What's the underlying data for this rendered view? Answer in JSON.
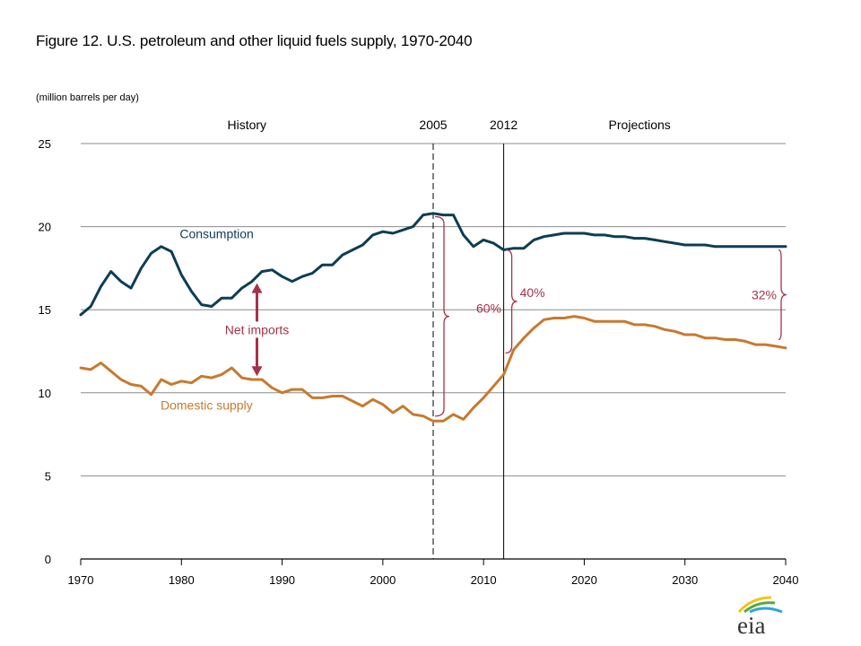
{
  "title": "Figure 12. U.S. petroleum and other liquid fuels supply, 1970-2040",
  "units": "(million barrels per day)",
  "logo_text": "eia",
  "colors": {
    "consumption": "#0d3d55",
    "domestic": "#c77a2e",
    "annotation": "#a63248",
    "grid": "#8c8c8c",
    "axis": "#000000"
  },
  "chart_data": {
    "type": "line",
    "title": "Figure 12. U.S. petroleum and other liquid fuels supply, 1970-2040",
    "ylabel": "(million barrels per day)",
    "xlabel": "",
    "xlim": [
      1970,
      2040
    ],
    "ylim": [
      0,
      25
    ],
    "grid": true,
    "x_ticks": [
      1970,
      1980,
      1990,
      2000,
      2010,
      2020,
      2030,
      2040
    ],
    "x_tick_labels": [
      "1970",
      "1980",
      "1990",
      "2000",
      "2010",
      "2020",
      "2030",
      "2040"
    ],
    "y_ticks": [
      0,
      5,
      10,
      15,
      20,
      25
    ],
    "y_tick_labels": [
      "0",
      "5",
      "10",
      "15",
      "20",
      "25"
    ],
    "period_markers": [
      {
        "year": 2005,
        "label": "2005",
        "style": "dashed"
      },
      {
        "year": 2012,
        "label": "2012",
        "style": "solid"
      }
    ],
    "period_labels": [
      {
        "label": "History",
        "year": 1986.5
      },
      {
        "label": "Projections",
        "year": 2025.5
      }
    ],
    "series": [
      {
        "name": "Consumption",
        "label_year": 1983.5,
        "label_value": 19.3,
        "x": [
          1970,
          1971,
          1972,
          1973,
          1974,
          1975,
          1976,
          1977,
          1978,
          1979,
          1980,
          1981,
          1982,
          1983,
          1984,
          1985,
          1986,
          1987,
          1988,
          1989,
          1990,
          1991,
          1992,
          1993,
          1994,
          1995,
          1996,
          1997,
          1998,
          1999,
          2000,
          2001,
          2002,
          2003,
          2004,
          2005,
          2006,
          2007,
          2008,
          2009,
          2010,
          2011,
          2012,
          2013,
          2014,
          2015,
          2016,
          2017,
          2018,
          2019,
          2020,
          2021,
          2022,
          2023,
          2024,
          2025,
          2026,
          2027,
          2028,
          2029,
          2030,
          2031,
          2032,
          2033,
          2034,
          2035,
          2036,
          2037,
          2038,
          2039,
          2040
        ],
        "values": [
          14.7,
          15.2,
          16.4,
          17.3,
          16.7,
          16.3,
          17.5,
          18.4,
          18.8,
          18.5,
          17.1,
          16.1,
          15.3,
          15.2,
          15.7,
          15.7,
          16.3,
          16.7,
          17.3,
          17.4,
          17.0,
          16.7,
          17.0,
          17.2,
          17.7,
          17.7,
          18.3,
          18.6,
          18.9,
          19.5,
          19.7,
          19.6,
          19.8,
          20.0,
          20.7,
          20.8,
          20.7,
          20.7,
          19.5,
          18.8,
          19.2,
          19.0,
          18.6,
          18.7,
          18.7,
          19.2,
          19.4,
          19.5,
          19.6,
          19.6,
          19.6,
          19.5,
          19.5,
          19.4,
          19.4,
          19.3,
          19.3,
          19.2,
          19.1,
          19.0,
          18.9,
          18.9,
          18.9,
          18.8,
          18.8,
          18.8,
          18.8,
          18.8,
          18.8,
          18.8,
          18.8
        ]
      },
      {
        "name": "Domestic supply",
        "label_year": 1982.5,
        "label_value": 9.0,
        "x": [
          1970,
          1971,
          1972,
          1973,
          1974,
          1975,
          1976,
          1977,
          1978,
          1979,
          1980,
          1981,
          1982,
          1983,
          1984,
          1985,
          1986,
          1987,
          1988,
          1989,
          1990,
          1991,
          1992,
          1993,
          1994,
          1995,
          1996,
          1997,
          1998,
          1999,
          2000,
          2001,
          2002,
          2003,
          2004,
          2005,
          2006,
          2007,
          2008,
          2009,
          2010,
          2011,
          2012,
          2013,
          2014,
          2015,
          2016,
          2017,
          2018,
          2019,
          2020,
          2021,
          2022,
          2023,
          2024,
          2025,
          2026,
          2027,
          2028,
          2029,
          2030,
          2031,
          2032,
          2033,
          2034,
          2035,
          2036,
          2037,
          2038,
          2039,
          2040
        ],
        "values": [
          11.5,
          11.4,
          11.8,
          11.3,
          10.8,
          10.5,
          10.4,
          9.9,
          10.8,
          10.5,
          10.7,
          10.6,
          11.0,
          10.9,
          11.1,
          11.5,
          10.9,
          10.8,
          10.8,
          10.3,
          10.0,
          10.2,
          10.2,
          9.7,
          9.7,
          9.8,
          9.8,
          9.5,
          9.2,
          9.6,
          9.3,
          8.8,
          9.2,
          8.7,
          8.6,
          8.3,
          8.3,
          8.7,
          8.4,
          9.1,
          9.7,
          10.4,
          11.1,
          12.6,
          13.3,
          13.9,
          14.4,
          14.5,
          14.5,
          14.6,
          14.5,
          14.3,
          14.3,
          14.3,
          14.3,
          14.1,
          14.1,
          14.0,
          13.8,
          13.7,
          13.5,
          13.5,
          13.3,
          13.3,
          13.2,
          13.2,
          13.1,
          12.9,
          12.9,
          12.8,
          12.7
        ]
      }
    ],
    "annotations": [
      {
        "type": "double-arrow",
        "label": "Net imports",
        "year": 1987.5,
        "from": 16.6,
        "to": 11.0
      },
      {
        "type": "brace",
        "label": "60%",
        "year": 2005,
        "from": 20.6,
        "to": 8.6
      },
      {
        "type": "brace",
        "label": "40%",
        "year": 2012,
        "from": 18.6,
        "to": 12.4
      },
      {
        "type": "brace",
        "label": "32%",
        "year": 2040,
        "from": 18.6,
        "to": 13.2
      }
    ]
  }
}
